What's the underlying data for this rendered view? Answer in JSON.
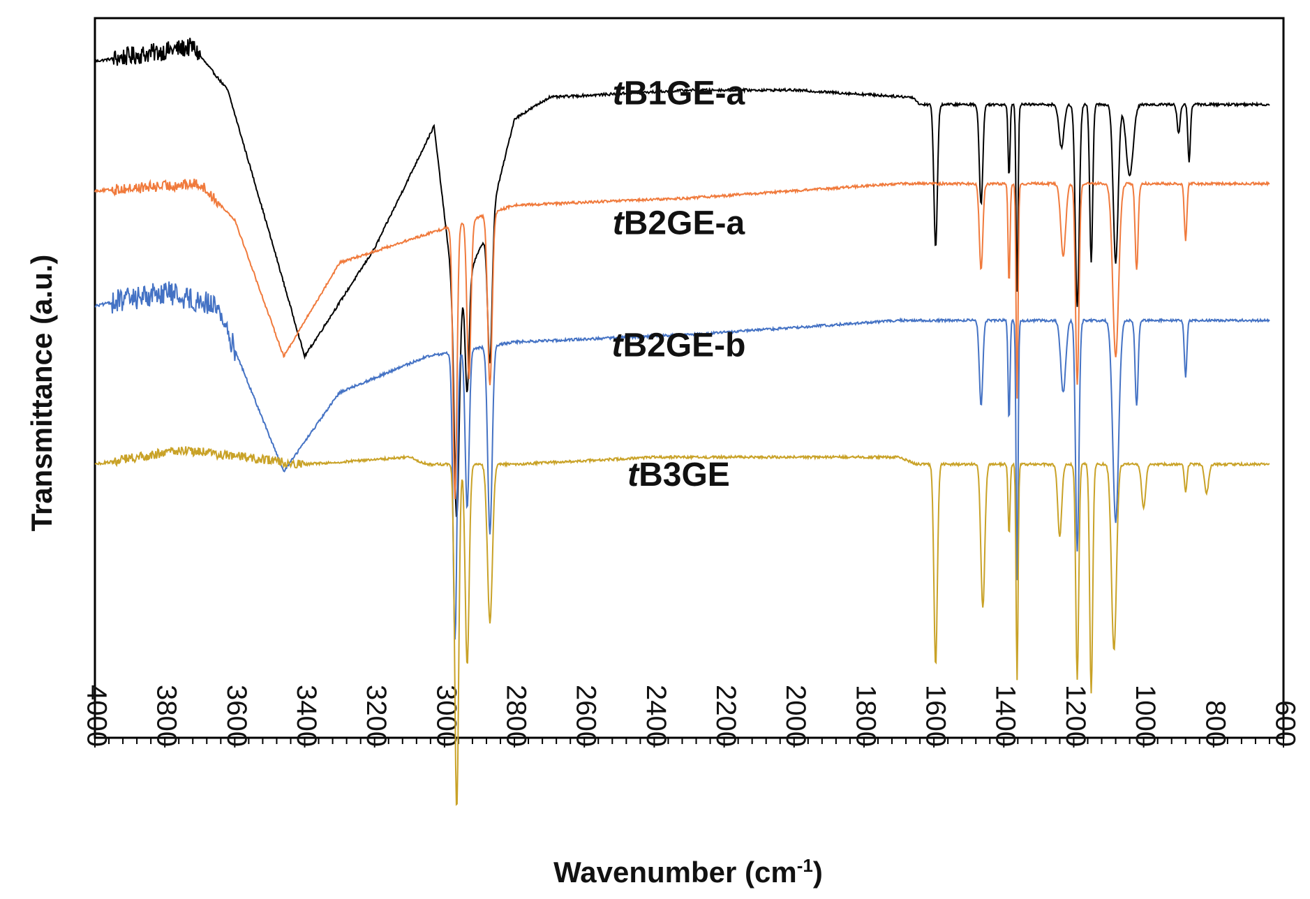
{
  "chart_data": {
    "type": "line",
    "title": "",
    "xlabel": "Wavenumber (cm",
    "xlabel_sup": "-1",
    "xlabel_end": ")",
    "ylabel": "Transmittance (a.u.)",
    "xlim": [
      4000,
      600
    ],
    "ylim": [
      0,
      100
    ],
    "x_ticks": [
      "4000",
      "3800",
      "3600",
      "3400",
      "3200",
      "3000",
      "2800",
      "2600",
      "2400",
      "2200",
      "2000",
      "1800",
      "1600",
      "1400",
      "1200",
      "1000",
      "800",
      "600"
    ],
    "grid": false,
    "series": [
      {
        "name": "tB1GE-a",
        "label_prefix": "t",
        "label_rest": "B1GE-a",
        "label_at": [
          2330,
          88
        ],
        "color": "#000000",
        "baseline": 93,
        "noise": 1.2,
        "noise_region": [
          3950,
          3700
        ],
        "plateau": [
          [
            4000,
            94
          ],
          [
            3720,
            96
          ],
          [
            3620,
            90
          ],
          [
            3500,
            70
          ],
          [
            3400,
            53
          ],
          [
            3200,
            68
          ],
          [
            3030,
            85
          ],
          [
            2970,
            60
          ],
          [
            2880,
            70
          ],
          [
            2800,
            86
          ],
          [
            2700,
            89
          ],
          [
            2300,
            90
          ],
          [
            2000,
            90
          ],
          [
            1660,
            89
          ],
          [
            1640,
            88
          ]
        ],
        "peaks": [
          [
            2965,
            30,
            10
          ],
          [
            2935,
            16,
            8
          ],
          [
            2870,
            20,
            9
          ],
          [
            1595,
            20,
            7
          ],
          [
            1465,
            14,
            7
          ],
          [
            1385,
            10,
            4
          ],
          [
            1362,
            26,
            4
          ],
          [
            1235,
            6,
            10
          ],
          [
            1190,
            28,
            8
          ],
          [
            1150,
            22,
            6
          ],
          [
            1080,
            22,
            10
          ],
          [
            1040,
            10,
            14
          ],
          [
            900,
            4,
            6
          ],
          [
            870,
            8,
            5
          ]
        ]
      },
      {
        "name": "tB2GE-a",
        "label_prefix": "t",
        "label_rest": "B2GE-a",
        "label_at": [
          2330,
          70
        ],
        "color": "#f07a3c",
        "baseline": 76,
        "noise": 0.7,
        "noise_region": [
          3950,
          3650
        ],
        "plateau": [
          [
            4000,
            76
          ],
          [
            3700,
            77
          ],
          [
            3600,
            72
          ],
          [
            3460,
            53
          ],
          [
            3300,
            66
          ],
          [
            3050,
            70
          ],
          [
            2800,
            74
          ],
          [
            2300,
            75
          ],
          [
            1700,
            77
          ],
          [
            1500,
            77
          ]
        ],
        "peaks": [
          [
            2970,
            38,
            8
          ],
          [
            2930,
            22,
            8
          ],
          [
            2870,
            24,
            9
          ],
          [
            1465,
            12,
            7
          ],
          [
            1385,
            14,
            4
          ],
          [
            1362,
            30,
            4
          ],
          [
            1230,
            10,
            10
          ],
          [
            1190,
            28,
            7
          ],
          [
            1080,
            24,
            12
          ],
          [
            1020,
            12,
            6
          ],
          [
            880,
            8,
            5
          ]
        ]
      },
      {
        "name": "tB2GE-b",
        "label_prefix": "t",
        "label_rest": "B2GE-b",
        "label_at": [
          2330,
          53
        ],
        "color": "#4472c4",
        "baseline": 60,
        "noise": 1.5,
        "noise_region": [
          3950,
          3600
        ],
        "plateau": [
          [
            4000,
            60
          ],
          [
            3800,
            62
          ],
          [
            3650,
            60
          ],
          [
            3460,
            37
          ],
          [
            3300,
            48
          ],
          [
            3050,
            53
          ],
          [
            2800,
            55
          ],
          [
            2300,
            56
          ],
          [
            1700,
            58
          ],
          [
            1500,
            58
          ]
        ],
        "peaks": [
          [
            2970,
            40,
            8
          ],
          [
            2935,
            22,
            8
          ],
          [
            2870,
            26,
            9
          ],
          [
            1465,
            12,
            7
          ],
          [
            1385,
            14,
            4
          ],
          [
            1362,
            36,
            4
          ],
          [
            1230,
            10,
            10
          ],
          [
            1190,
            32,
            7
          ],
          [
            1080,
            28,
            12
          ],
          [
            1020,
            12,
            6
          ],
          [
            880,
            8,
            5
          ]
        ]
      },
      {
        "name": "tB3GE",
        "label_prefix": "t",
        "label_rest": "B3GE",
        "label_at": [
          2330,
          35
        ],
        "color": "#c9a227",
        "baseline": 39,
        "noise": 0.6,
        "noise_region": [
          3950,
          3400
        ],
        "plateau": [
          [
            4000,
            38
          ],
          [
            3750,
            40
          ],
          [
            3400,
            38
          ],
          [
            3100,
            39
          ],
          [
            3050,
            38
          ],
          [
            2800,
            38
          ],
          [
            2400,
            39
          ],
          [
            1700,
            39
          ],
          [
            1650,
            38
          ]
        ],
        "peaks": [
          [
            2965,
            48,
            8
          ],
          [
            2935,
            28,
            8
          ],
          [
            2870,
            22,
            10
          ],
          [
            1595,
            28,
            7
          ],
          [
            1460,
            20,
            8
          ],
          [
            1385,
            10,
            4
          ],
          [
            1362,
            30,
            4
          ],
          [
            1240,
            10,
            8
          ],
          [
            1190,
            30,
            6
          ],
          [
            1150,
            32,
            6
          ],
          [
            1085,
            26,
            10
          ],
          [
            1000,
            6,
            8
          ],
          [
            880,
            4,
            5
          ],
          [
            820,
            4,
            8
          ]
        ]
      }
    ]
  }
}
